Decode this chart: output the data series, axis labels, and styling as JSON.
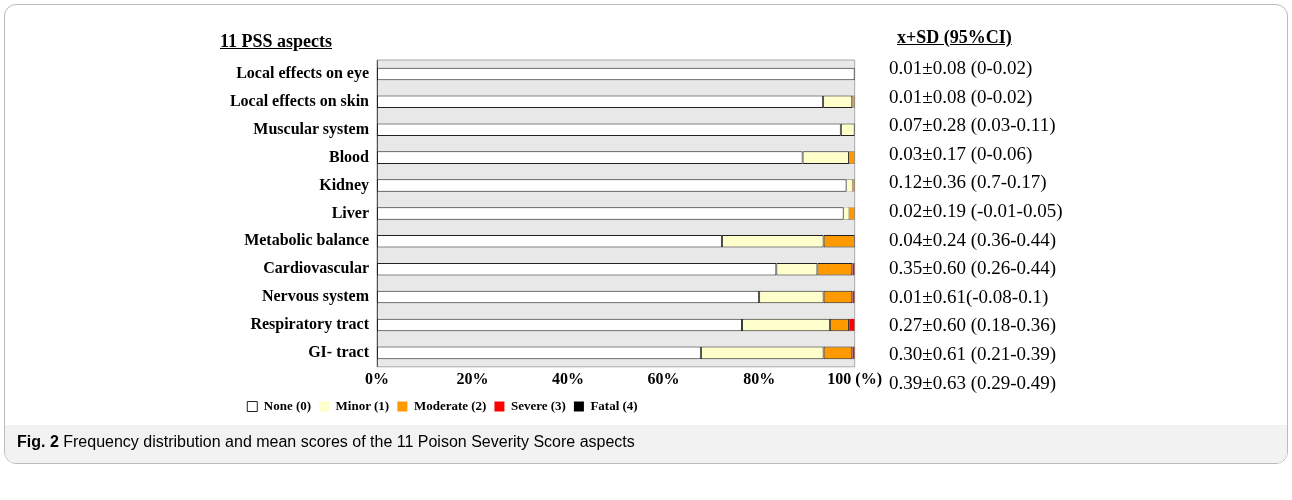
{
  "chart_data": {
    "type": "bar",
    "orientation": "horizontal",
    "stacked": true,
    "title": "Fig. 2 Frequency distribution and mean scores of the 11 Poison Severity Score aspects",
    "ylabel": "11 PSS aspects",
    "categories": [
      "Local effects on eye",
      "Local effects on skin",
      "Muscular system",
      "Blood",
      "Kidney",
      "Liver",
      "Metabolic balance",
      "Cardiovascular",
      "Nervous system",
      "Respiratory tract",
      "GI- tract"
    ],
    "series": [
      {
        "name": "None (0)",
        "color": "#ffffff",
        "values": [
          100,
          93.4,
          97.1,
          89.1,
          98.3,
          97.7,
          72.2,
          83.6,
          80.0,
          76.4,
          67.8
        ]
      },
      {
        "name": "Minor (1)",
        "color": "#ffffcc",
        "values": [
          0,
          6.1,
          2.9,
          9.7,
          1.2,
          1.1,
          21.3,
          8.6,
          13.5,
          18.4,
          25.7
        ]
      },
      {
        "name": "Moderate (2)",
        "color": "#ff9900",
        "values": [
          0,
          0.5,
          0,
          1.2,
          0.5,
          1.2,
          6.5,
          7.3,
          6.0,
          4.0,
          6.0
        ]
      },
      {
        "name": "Severe (3)",
        "color": "#ff0000",
        "values": [
          0,
          0,
          0,
          0,
          0,
          0,
          0,
          0.5,
          0.5,
          1.2,
          0.5
        ]
      },
      {
        "name": "Fatal (4)",
        "color": "#000000",
        "values": [
          0,
          0,
          0,
          0,
          0,
          0,
          0,
          0,
          0,
          0,
          0
        ]
      }
    ],
    "xlim": [
      0,
      100
    ],
    "xticks": [
      {
        "value": 0,
        "label": "0%"
      },
      {
        "value": 20,
        "label": "20%"
      },
      {
        "value": 40,
        "label": "40%"
      },
      {
        "value": 60,
        "label": "60%"
      },
      {
        "value": 80,
        "label": "80%"
      },
      {
        "value": 100,
        "label": "100 (%)"
      }
    ],
    "grid": false,
    "legend": "bottom",
    "annotations": [
      "x+SD (95%CI)",
      "0.01±0.08 (0-0.02)",
      "0.01±0.08 (0-0.02)",
      "0.07±0.28 (0.03-0.11)",
      "0.03±0.17 (0-0.06)",
      "0.12±0.36 (0.7-0.17)",
      "0.02±0.19 (-0.01-0.05)",
      "0.04±0.24 (0.36-0.44)",
      "0.35±0.60 (0.26-0.44)",
      "0.01±0.61(-0.08-0.1)",
      "0.27±0.60 (0.18-0.36)",
      "0.30±0.61 (0.21-0.39)",
      "0.39±0.63 (0.29-0.49)"
    ]
  }
}
